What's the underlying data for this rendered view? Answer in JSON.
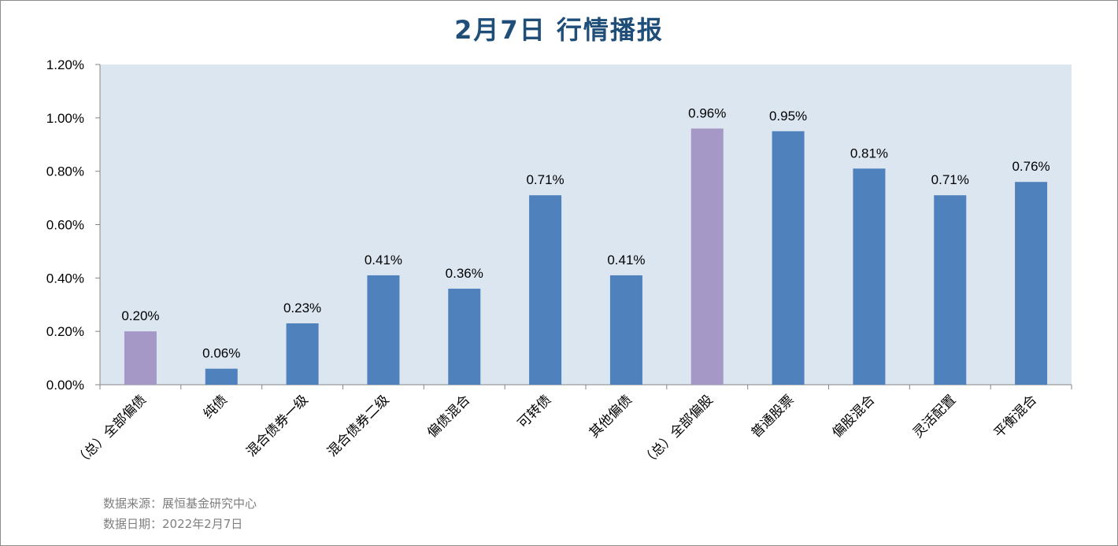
{
  "chart_data": {
    "type": "bar",
    "title": "2月7日  行情播报",
    "categories": [
      "（总）全部偏债",
      "纯债",
      "混合债券一级",
      "混合债券二级",
      "偏债混合",
      "可转债",
      "其他偏债",
      "（总）全部偏股",
      "普通股票",
      "偏股混合",
      "灵活配置",
      "平衡混合"
    ],
    "values": [
      0.2,
      0.06,
      0.23,
      0.41,
      0.36,
      0.71,
      0.41,
      0.96,
      0.95,
      0.81,
      0.71,
      0.76
    ],
    "data_labels": [
      "0.20%",
      "0.06%",
      "0.23%",
      "0.41%",
      "0.36%",
      "0.71%",
      "0.41%",
      "0.96%",
      "0.95%",
      "0.81%",
      "0.71%",
      "0.76%"
    ],
    "bar_colors": [
      "#a597c6",
      "#4f81bd",
      "#4f81bd",
      "#4f81bd",
      "#4f81bd",
      "#4f81bd",
      "#4f81bd",
      "#a597c6",
      "#4f81bd",
      "#4f81bd",
      "#4f81bd",
      "#4f81bd"
    ],
    "ylim": [
      0,
      1.2
    ],
    "yticks": [
      0,
      0.2,
      0.4,
      0.6,
      0.8,
      1.0,
      1.2
    ],
    "ytick_labels": [
      "0.00%",
      "0.20%",
      "0.40%",
      "0.60%",
      "0.80%",
      "1.00%",
      "1.20%"
    ],
    "xlabel": "",
    "ylabel": "",
    "grid": false,
    "legend": "none",
    "plot_background": "#dce6f1",
    "title_color": "#1f4e79"
  },
  "footer": {
    "source": "数据来源：展恒基金研究中心",
    "date": "数据日期：2022年2月7日"
  }
}
